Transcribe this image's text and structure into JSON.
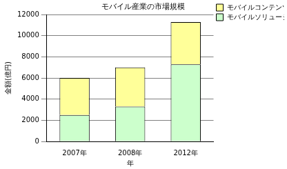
{
  "chart_data": {
    "type": "bar",
    "title": "モバイル産業の市場規模",
    "x_label": "年",
    "y_label": "金額(億円)",
    "categories": [
      "2007年",
      "2008年",
      "2012年"
    ],
    "series": [
      {
        "name": "モバイルソリューション",
        "color": "#ccffcc",
        "values": [
          2500,
          3300,
          7300
        ]
      },
      {
        "name": "モバイルコンテンツ",
        "color": "#ffff99",
        "values": [
          3500,
          3700,
          4000
        ]
      }
    ],
    "stacked": true,
    "ylim": [
      0,
      12000
    ],
    "yticks": [
      0,
      2000,
      4000,
      6000,
      8000,
      10000,
      12000
    ],
    "grid": true,
    "legend": "upper right"
  }
}
